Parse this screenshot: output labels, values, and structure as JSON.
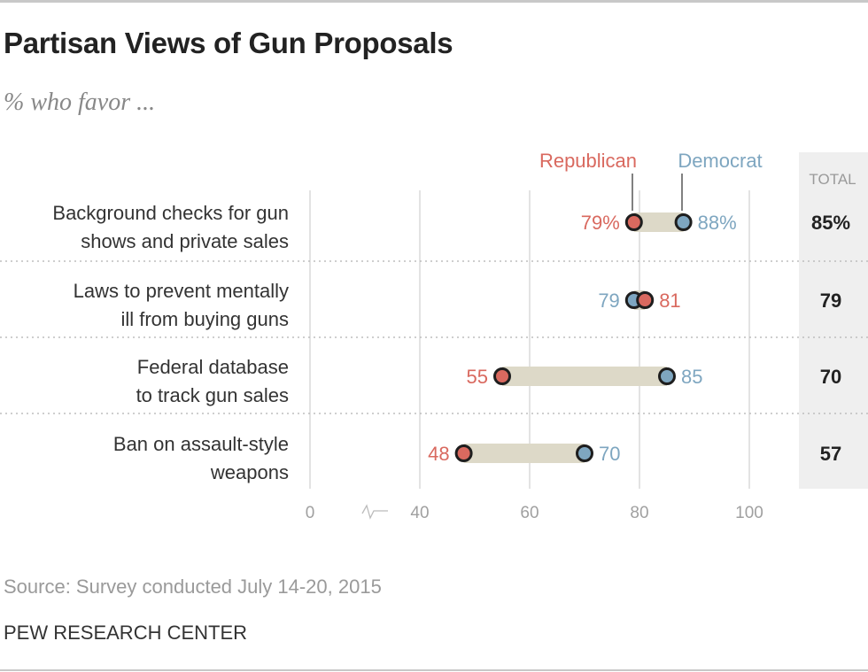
{
  "header": {
    "title": "Partisan Views of Gun Proposals",
    "subtitle": "% who favor ..."
  },
  "footer": {
    "source": "Source: Survey conducted July 14-20, 2015",
    "brand": "PEW RESEARCH CENTER"
  },
  "colors": {
    "republican": "#d9695f",
    "democrat": "#7ea6c0",
    "range_bar": "#ddd9c8",
    "total_panel": "#efefef"
  },
  "chart_data": {
    "type": "dot-range",
    "title": "Partisan Views of Gun Proposals",
    "subtitle": "% who favor ...",
    "legend": [
      "Republican",
      "Democrat"
    ],
    "total_header": "TOTAL",
    "xticks": [
      "0",
      "40",
      "60",
      "80",
      "100"
    ],
    "x_axis_break": "between 0 and 40",
    "xlim": [
      0,
      100
    ],
    "categories": [
      "Background checks for gun shows and private sales",
      "Laws to prevent mentally ill from buying guns",
      "Federal database to track gun sales",
      "Ban on assault-style weapons"
    ],
    "category_lines": [
      [
        "Background checks for gun",
        "shows and private sales"
      ],
      [
        "Laws to prevent mentally",
        "ill from buying guns"
      ],
      [
        "Federal database",
        "to track gun sales"
      ],
      [
        "Ban on assault-style",
        "weapons"
      ]
    ],
    "series": [
      {
        "name": "Republican",
        "values": [
          79,
          81,
          55,
          48
        ],
        "labels": [
          "79%",
          "81",
          "55",
          "48"
        ]
      },
      {
        "name": "Democrat",
        "values": [
          88,
          79,
          85,
          70
        ],
        "labels": [
          "88%",
          "79",
          "85",
          "70"
        ]
      }
    ],
    "total": {
      "values": [
        85,
        79,
        70,
        57
      ],
      "labels": [
        "85%",
        "79",
        "70",
        "57"
      ]
    }
  }
}
